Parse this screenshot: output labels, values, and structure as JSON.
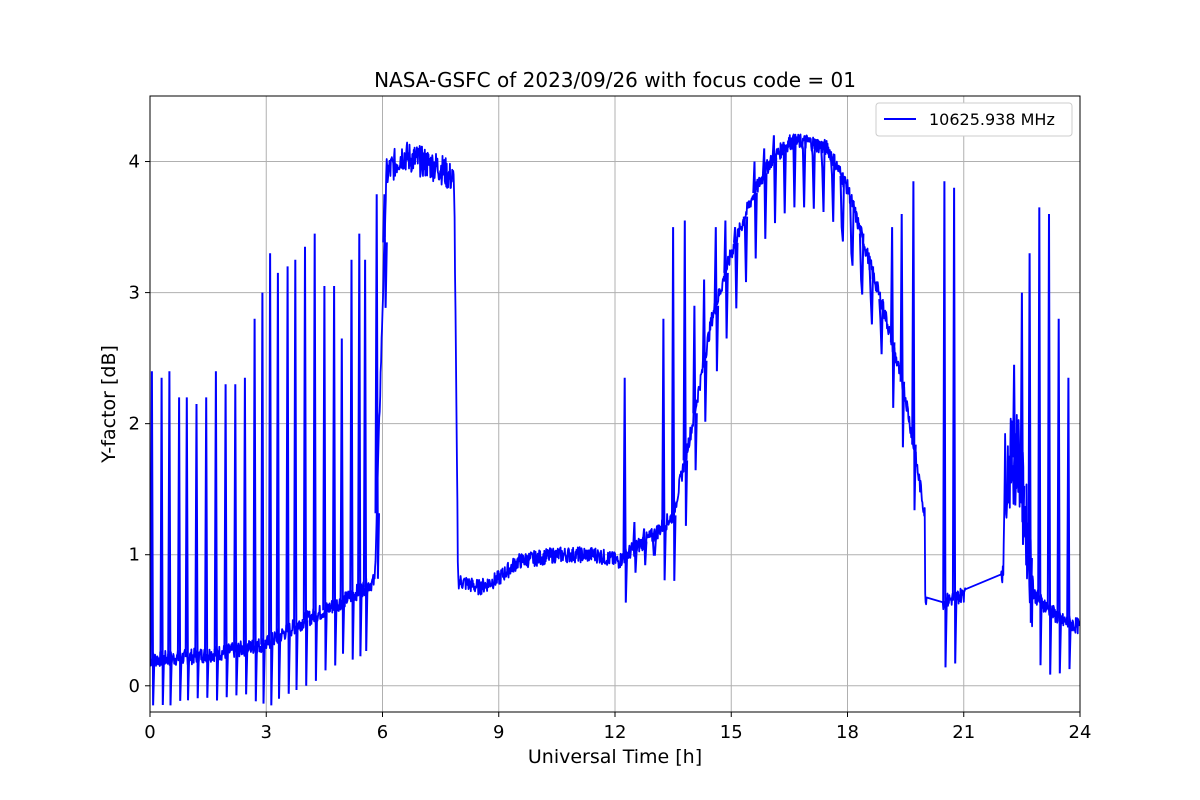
{
  "chart_data": {
    "type": "line",
    "title": "NASA-GSFC of 2023/09/26 with focus code = 01",
    "xlabel": "Universal Time [h]",
    "ylabel": "Y-factor [dB]",
    "xlim": [
      0,
      24
    ],
    "ylim": [
      -0.2,
      4.5
    ],
    "xticks": [
      0,
      3,
      6,
      9,
      12,
      15,
      18,
      21,
      24
    ],
    "xtick_labels": [
      "0",
      "3",
      "6",
      "9",
      "12",
      "15",
      "18",
      "21",
      "24"
    ],
    "yticks": [
      0,
      1,
      2,
      3,
      4
    ],
    "ytick_labels": [
      "0",
      "1",
      "2",
      "3",
      "4"
    ],
    "grid": true,
    "legend_position": "top-right",
    "series": [
      {
        "name": "10625.938 MHz",
        "color": "#0000ff",
        "baseline": [
          [
            0.0,
            0.2
          ],
          [
            1.0,
            0.22
          ],
          [
            2.0,
            0.26
          ],
          [
            3.0,
            0.32
          ],
          [
            4.0,
            0.5
          ],
          [
            5.0,
            0.65
          ],
          [
            5.8,
            0.8
          ],
          [
            6.1,
            3.9
          ],
          [
            6.5,
            4.05
          ],
          [
            7.0,
            4.0
          ],
          [
            7.5,
            3.95
          ],
          [
            7.85,
            3.85
          ],
          [
            7.95,
            0.8
          ],
          [
            8.5,
            0.75
          ],
          [
            9.0,
            0.82
          ],
          [
            9.5,
            0.95
          ],
          [
            10.5,
            1.0
          ],
          [
            11.5,
            1.0
          ],
          [
            12.1,
            0.95
          ],
          [
            12.5,
            1.05
          ],
          [
            13.0,
            1.15
          ],
          [
            13.5,
            1.3
          ],
          [
            14.0,
            2.0
          ],
          [
            14.5,
            2.8
          ],
          [
            15.0,
            3.3
          ],
          [
            15.5,
            3.7
          ],
          [
            16.0,
            4.0
          ],
          [
            16.5,
            4.15
          ],
          [
            17.0,
            4.15
          ],
          [
            17.5,
            4.1
          ],
          [
            18.0,
            3.8
          ],
          [
            18.5,
            3.3
          ],
          [
            19.0,
            2.8
          ],
          [
            19.5,
            2.2
          ],
          [
            20.0,
            1.3
          ],
          [
            20.0,
            0.68
          ],
          [
            20.5,
            0.64
          ],
          [
            21.0,
            0.7
          ],
          [
            21.05,
            0.8
          ],
          [
            22.0,
            0.82
          ],
          [
            22.05,
            1.6
          ],
          [
            22.4,
            1.8
          ],
          [
            22.8,
            0.7
          ],
          [
            23.5,
            0.5
          ],
          [
            24.0,
            0.45
          ]
        ],
        "spikes": [
          [
            0.05,
            2.4
          ],
          [
            0.3,
            2.35
          ],
          [
            0.5,
            2.4
          ],
          [
            0.75,
            2.2
          ],
          [
            0.95,
            2.2
          ],
          [
            1.2,
            2.15
          ],
          [
            1.45,
            2.2
          ],
          [
            1.7,
            2.4
          ],
          [
            1.95,
            2.3
          ],
          [
            2.2,
            2.3
          ],
          [
            2.45,
            2.35
          ],
          [
            2.7,
            2.8
          ],
          [
            2.9,
            3.0
          ],
          [
            3.1,
            3.3
          ],
          [
            3.3,
            3.15
          ],
          [
            3.55,
            3.2
          ],
          [
            3.75,
            3.25
          ],
          [
            4.0,
            3.35
          ],
          [
            4.25,
            3.45
          ],
          [
            4.5,
            3.05
          ],
          [
            4.75,
            3.05
          ],
          [
            4.95,
            2.65
          ],
          [
            5.2,
            3.25
          ],
          [
            5.4,
            3.45
          ],
          [
            5.55,
            3.25
          ],
          [
            5.85,
            3.75
          ],
          [
            6.05,
            3.75
          ],
          [
            12.25,
            2.35
          ],
          [
            12.5,
            1.25
          ],
          [
            12.75,
            1.2
          ],
          [
            13.0,
            1.0
          ],
          [
            13.25,
            2.8
          ],
          [
            13.5,
            3.5
          ],
          [
            13.8,
            3.55
          ],
          [
            14.05,
            2.9
          ],
          [
            14.3,
            3.1
          ],
          [
            14.6,
            3.5
          ],
          [
            14.85,
            3.55
          ],
          [
            15.1,
            3.5
          ],
          [
            15.35,
            3.55
          ],
          [
            15.6,
            4.0
          ],
          [
            15.85,
            4.1
          ],
          [
            16.1,
            4.2
          ],
          [
            16.35,
            4.15
          ],
          [
            16.6,
            4.2
          ],
          [
            16.85,
            4.1
          ],
          [
            17.1,
            4.05
          ],
          [
            17.35,
            3.95
          ],
          [
            17.6,
            3.9
          ],
          [
            17.85,
            3.5
          ],
          [
            18.1,
            3.3
          ],
          [
            18.35,
            3.1
          ],
          [
            18.6,
            2.95
          ],
          [
            18.85,
            2.8
          ],
          [
            19.15,
            3.5
          ],
          [
            19.4,
            3.6
          ],
          [
            19.7,
            3.85
          ],
          [
            20.5,
            3.85
          ],
          [
            20.75,
            3.8
          ],
          [
            22.3,
            2.45
          ],
          [
            22.5,
            3.0
          ],
          [
            22.7,
            3.3
          ],
          [
            22.95,
            3.65
          ],
          [
            23.2,
            3.6
          ],
          [
            23.45,
            2.8
          ],
          [
            23.7,
            2.35
          ]
        ]
      }
    ]
  }
}
